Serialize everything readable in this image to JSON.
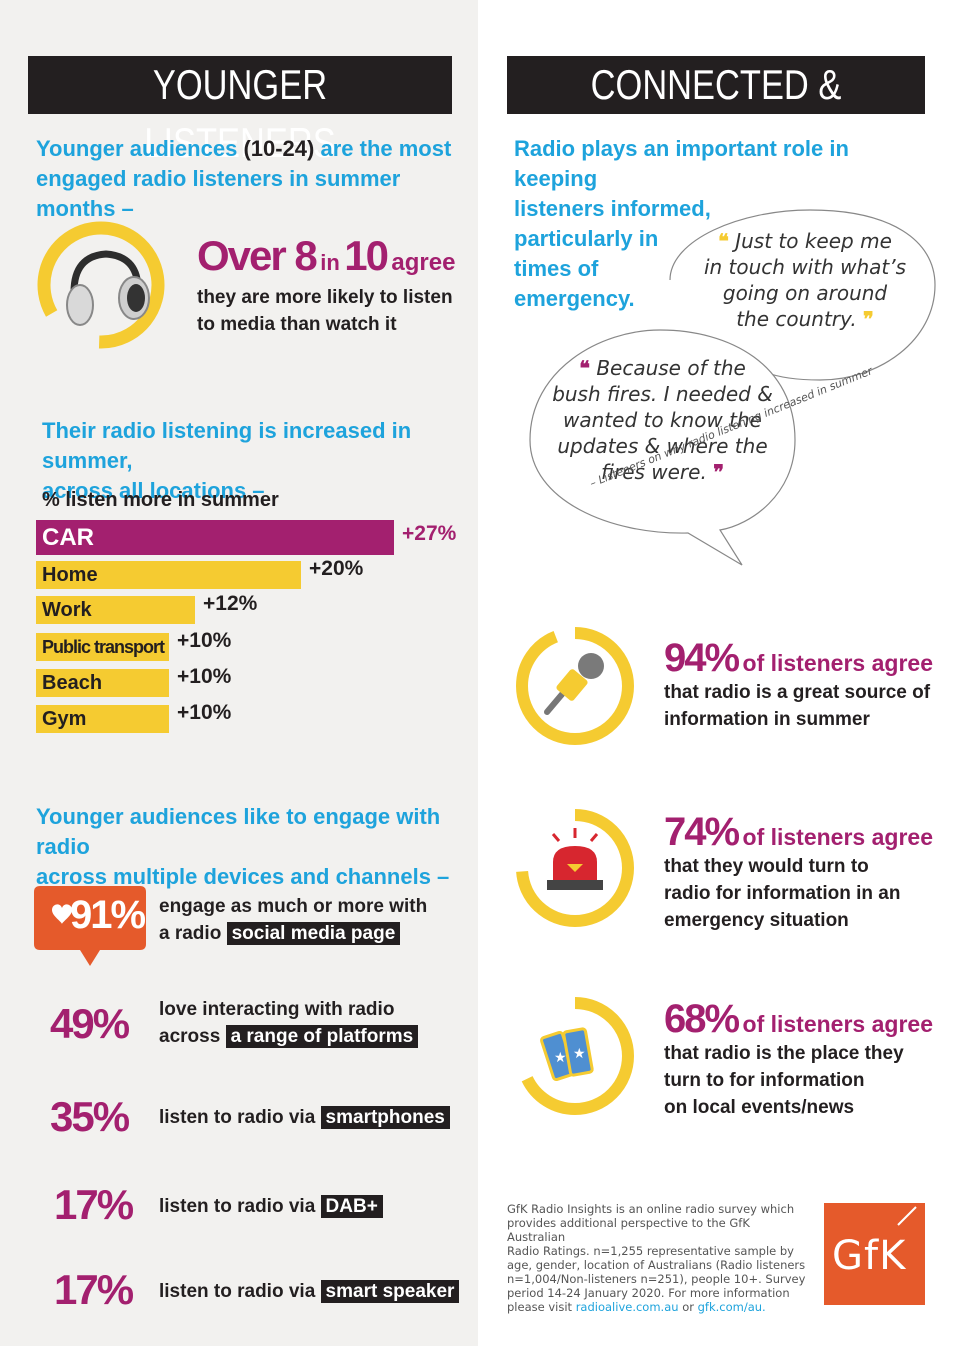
{
  "colors": {
    "magenta": "#a3206f",
    "yellow": "#f5cb31",
    "blue": "#1ea3dc",
    "dark": "#231f20",
    "orange": "#e55a2b"
  },
  "left": {
    "title": "YOUNGER LISTENERS",
    "intro": {
      "part1": "Younger audiences",
      "part2": "(10-24)",
      "part3": "are the most",
      "line2": "engaged radio listeners in summer months –"
    },
    "headline": {
      "over": "Over 8",
      "in": "in",
      "ten": "10",
      "agree": "agree"
    },
    "headline_desc_1": "they are more likely to listen",
    "headline_desc_2": "to media than watch it",
    "headphones_icon": "headphones-icon",
    "chart_heading_1": "Their radio listening is increased in summer,",
    "chart_heading_2": "across all locations –",
    "chart_subtitle": "% listen more in summer",
    "devices_heading_1": "Younger audiences like to engage with radio",
    "devices_heading_2": "across multiple devices and channels –",
    "stats": [
      {
        "pct": "91%",
        "line1": "engage as much or more with",
        "line2_pre": "a radio",
        "highlight": "social media page"
      },
      {
        "pct": "49%",
        "line1": "love interacting with radio",
        "line2_pre": "across",
        "highlight": "a range of platforms"
      },
      {
        "pct": "35%",
        "line1": "",
        "line2_pre": "listen to radio via",
        "highlight": "smartphones"
      },
      {
        "pct": "17%",
        "line1": "",
        "line2_pre": "listen to radio via",
        "highlight": "DAB+"
      },
      {
        "pct": "17%",
        "line1": "",
        "line2_pre": "listen to radio via",
        "highlight": "smart speaker"
      }
    ]
  },
  "chart_data": {
    "type": "bar",
    "categories": [
      "CAR",
      "Home",
      "Work",
      "Public transport",
      "Beach",
      "Gym"
    ],
    "values": [
      27,
      20,
      12,
      10,
      10,
      10
    ],
    "value_labels": [
      "+27%",
      "+20%",
      "+12%",
      "+10%",
      "+10%",
      "+10%"
    ],
    "title": "% listen more in summer",
    "xlabel": "",
    "ylabel": ""
  },
  "right": {
    "title": "CONNECTED & INFORMED",
    "intro_1": "Radio plays an important role in keeping",
    "intro_2": "listeners informed,",
    "intro_3": "particularly in",
    "intro_4": "times of",
    "intro_5": "emergency.",
    "quote1": [
      "Just to keep me",
      "in touch with what’s",
      "going on around",
      "the country."
    ],
    "quote2": [
      "Because of the",
      "bush fires. I needed &",
      "wanted to know the",
      "updates & where the",
      "fires were."
    ],
    "quote_attribution": "– Listeners on why radio listening increased in summer",
    "agree": [
      {
        "num": "94%",
        "rest": "of listeners agree",
        "desc": [
          "that radio is a great source of",
          "information in summer"
        ],
        "progress_pct": 94,
        "icon": "microphone-icon"
      },
      {
        "num": "74%",
        "rest": "of listeners agree",
        "desc": [
          "that they would turn to",
          "radio for information in an",
          "emergency situation"
        ],
        "progress_pct": 74,
        "icon": "siren-icon"
      },
      {
        "num": "68%",
        "rest": "of listeners agree",
        "desc": [
          "that radio is the place they",
          "turn to for information",
          "on local events/news"
        ],
        "progress_pct": 68,
        "icon": "tickets-icon"
      }
    ],
    "footnote": {
      "lines": [
        "GfK Radio Insights is an online radio survey which",
        "provides additional perspective to the GfK Australian",
        "Radio Ratings. n=1,255 representative sample by",
        "age, gender, location of Australians (Radio listeners",
        "n=1,004/Non-listeners n=251), people 10+. Survey",
        "period 14-24 January 2020. For more information"
      ],
      "last_pre": "please visit",
      "link1": "radioalive.com.au",
      "or": "or",
      "link2": "gfk.com/au."
    },
    "logo_text": "GfK"
  }
}
